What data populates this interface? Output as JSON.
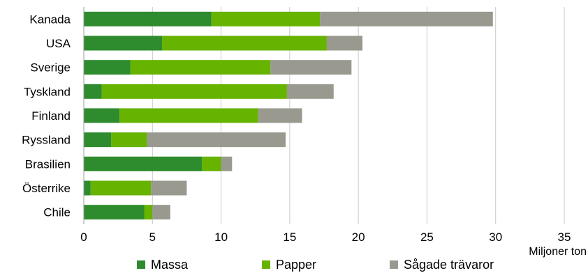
{
  "chart_data": {
    "type": "bar",
    "orientation": "horizontal",
    "stacked": true,
    "categories": [
      "Kanada",
      "USA",
      "Sverige",
      "Tyskland",
      "Finland",
      "Ryssland",
      "Brasilien",
      "Österrike",
      "Chile"
    ],
    "series": [
      {
        "name": "Massa",
        "color": "#2e8b2e",
        "values": [
          9.3,
          5.7,
          3.4,
          1.3,
          2.6,
          2.0,
          8.6,
          0.5,
          4.4
        ]
      },
      {
        "name": "Papper",
        "color": "#66b300",
        "values": [
          7.9,
          12.0,
          10.2,
          13.5,
          10.1,
          2.6,
          1.4,
          4.4,
          0.6
        ]
      },
      {
        "name": "Sågade trävaror",
        "color": "#999990",
        "values": [
          12.6,
          2.6,
          5.9,
          3.4,
          3.2,
          10.1,
          0.8,
          2.6,
          1.3
        ]
      }
    ],
    "xticks": [
      "0",
      "5",
      "10",
      "15",
      "20",
      "25",
      "30",
      "35"
    ],
    "xlim": [
      0,
      35
    ],
    "xlabel": "Miljoner ton",
    "grid": "vertical",
    "legend_position": "bottom"
  }
}
